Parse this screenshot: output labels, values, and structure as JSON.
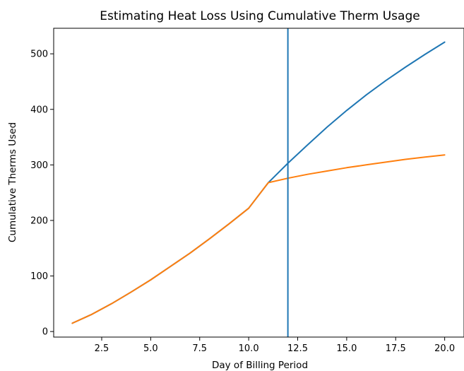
{
  "chart_data": {
    "type": "line",
    "title": "Estimating Heat Loss Using Cumulative Therm Usage",
    "xlabel": "Day of Billing Period",
    "ylabel": "Cumulative Therms Used",
    "xlim": [
      0.05,
      20.95
    ],
    "ylim": [
      -10,
      546
    ],
    "xticks": [
      2.5,
      5.0,
      7.5,
      10.0,
      12.5,
      15.0,
      17.5,
      20.0
    ],
    "xtick_labels": [
      "2.5",
      "5.0",
      "7.5",
      "10.0",
      "12.5",
      "15.0",
      "17.5",
      "20.0"
    ],
    "yticks": [
      0,
      100,
      200,
      300,
      400,
      500
    ],
    "ytick_labels": [
      "0",
      "100",
      "200",
      "300",
      "400",
      "500"
    ],
    "grid": false,
    "vertical_line": {
      "x": 12,
      "color": "#1f77b4"
    },
    "series": [
      {
        "color": "#1f77b4",
        "x": [
          1,
          2,
          3,
          4,
          5,
          6,
          7,
          8,
          9,
          10,
          11,
          12,
          13,
          14,
          15,
          16,
          17,
          18,
          19,
          20
        ],
        "y": [
          15,
          31,
          50,
          71,
          93,
          117,
          141,
          167,
          194,
          222,
          268,
          303,
          336,
          368,
          398,
          426,
          452,
          476,
          499,
          521
        ]
      },
      {
        "color": "#ff7f0e",
        "x": [
          1,
          2,
          3,
          4,
          5,
          6,
          7,
          8,
          9,
          10,
          11,
          12,
          13,
          14,
          15,
          16,
          17,
          18,
          19,
          20
        ],
        "y": [
          15,
          31,
          50,
          71,
          93,
          117,
          141,
          167,
          194,
          222,
          268,
          276,
          283,
          289,
          295,
          300,
          305,
          310,
          314,
          318
        ]
      }
    ]
  }
}
